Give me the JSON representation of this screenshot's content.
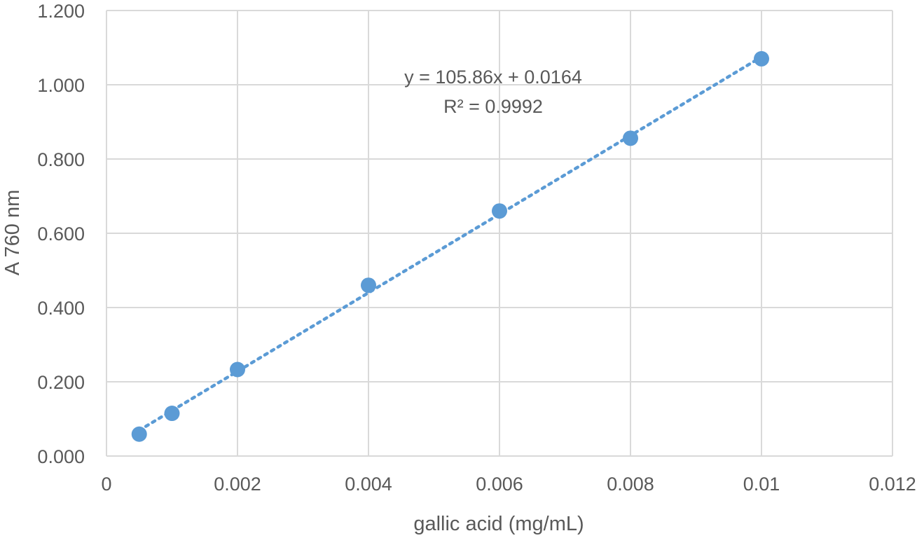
{
  "chart_data": {
    "type": "scatter",
    "title": "",
    "xlabel": "gallic acid (mg/mL)",
    "ylabel": "A 760 nm",
    "xlim": [
      0,
      0.012
    ],
    "ylim": [
      0,
      1.2
    ],
    "x_ticks": [
      "0",
      "0.002",
      "0.004",
      "0.006",
      "0.008",
      "0.01",
      "0.012"
    ],
    "y_ticks": [
      "0.000",
      "0.200",
      "0.400",
      "0.600",
      "0.800",
      "1.000",
      "1.200"
    ],
    "grid": true,
    "series": [
      {
        "x": [
          0.0005,
          0.001,
          0.002,
          0.004,
          0.006,
          0.008,
          0.01
        ],
        "y": [
          0.059,
          0.115,
          0.233,
          0.46,
          0.66,
          0.856,
          1.07
        ],
        "color": "#5B9BD5"
      }
    ],
    "trendline": {
      "type": "linear",
      "slope": 105.86,
      "intercept": 0.0164,
      "x_range": [
        0.0005,
        0.01
      ],
      "style": "dotted",
      "color": "#5B9BD5",
      "equation_label": "y = 105.86x + 0.0164",
      "r2_label": "R² = 0.9992"
    }
  }
}
